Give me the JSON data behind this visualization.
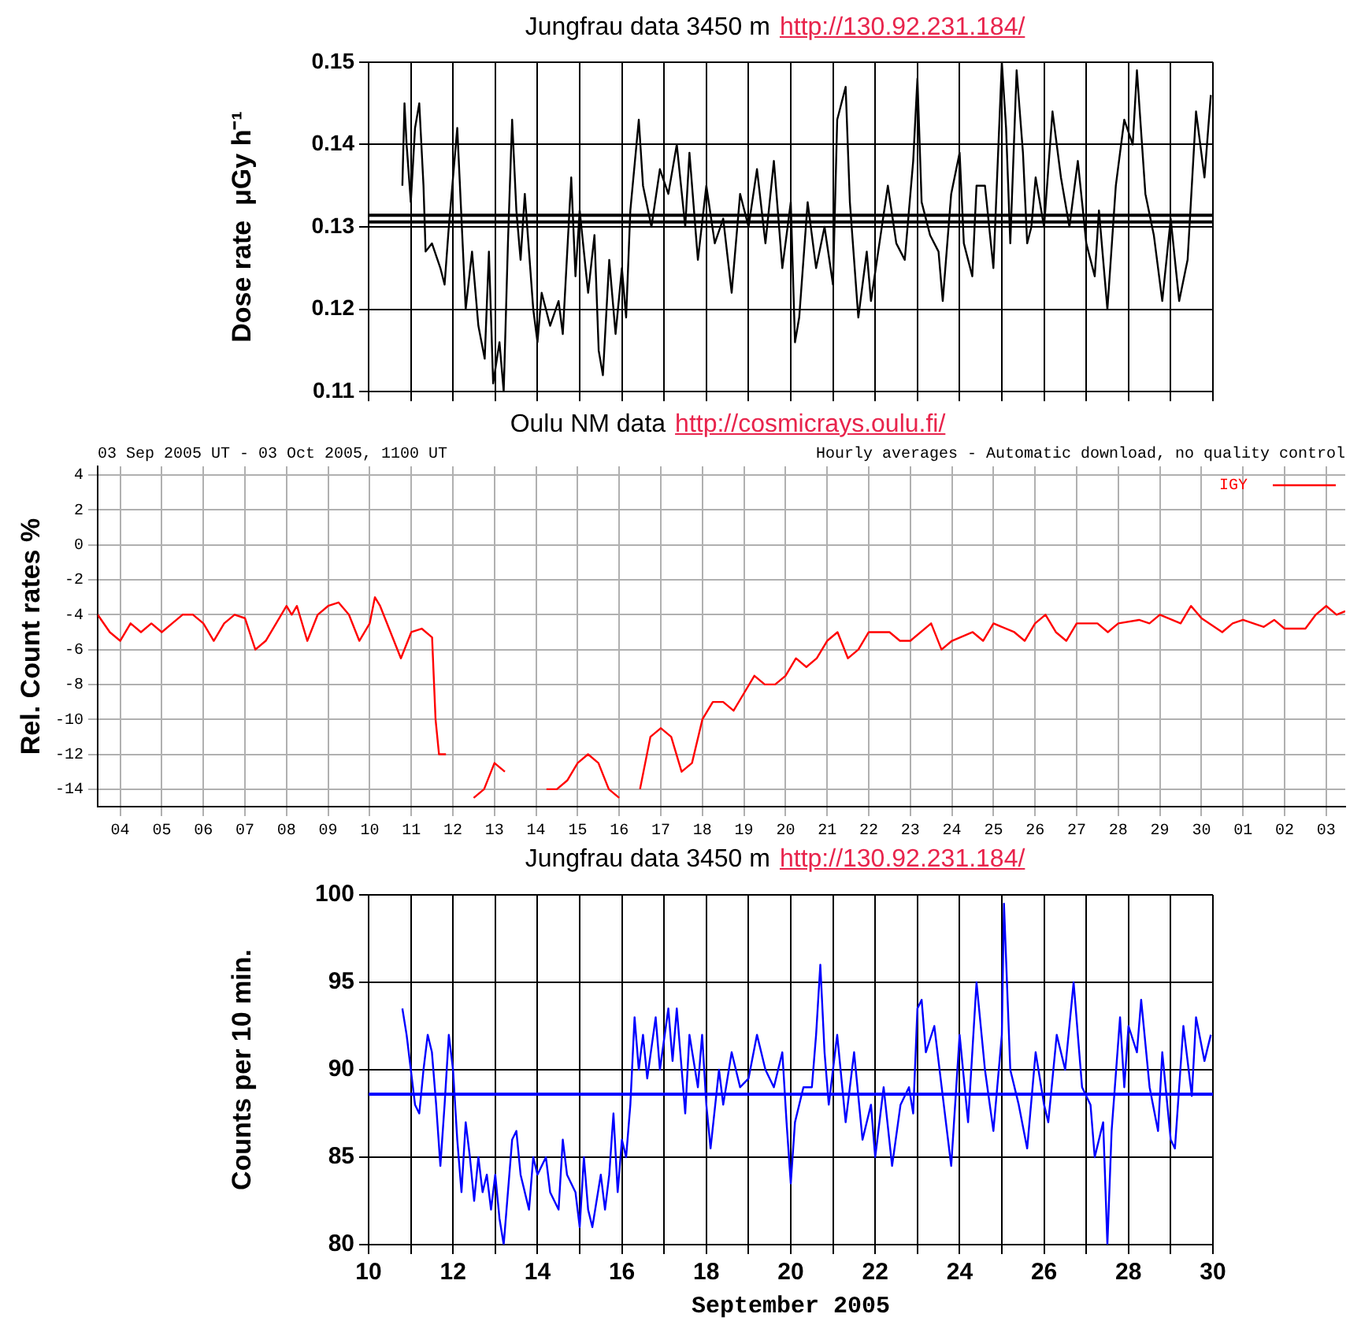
{
  "chart_data": [
    {
      "type": "line",
      "title": "Jungfrau data 3450 m",
      "subtitle": "http://130.92.231.184/",
      "ylabel": "Dose rate  μGy h⁻¹",
      "xlim": [
        10,
        30
      ],
      "xticks": [
        10,
        {
          "value": 11,
          "label": null
        },
        12,
        {
          "value": 13,
          "label": null
        },
        14,
        {
          "value": 15,
          "label": null
        },
        16,
        {
          "value": 17,
          "label": null
        },
        18,
        {
          "value": 19,
          "label": null
        },
        20,
        {
          "value": 21,
          "label": null
        },
        22,
        {
          "value": 23,
          "label": null
        },
        24,
        {
          "value": 25,
          "label": null
        },
        26,
        {
          "value": 27,
          "label": null
        },
        28,
        {
          "value": 29,
          "label": null
        },
        30
      ],
      "ylim": [
        0.11,
        0.15
      ],
      "yticks": [
        0.11,
        0.12,
        0.13,
        0.14,
        0.15
      ],
      "tick_labels": "y",
      "grid": true,
      "ref_lines": [
        {
          "axis": "y",
          "value": 0.1306,
          "color": "#000000"
        },
        {
          "axis": "y",
          "value": 0.1314,
          "color": "#000000"
        }
      ],
      "series": [
        {
          "color": "#000000",
          "x": [
            10.8,
            10.85,
            10.9,
            11.0,
            11.1,
            11.2,
            11.3,
            11.35,
            11.5,
            11.7,
            11.8,
            11.9,
            12.0,
            12.1,
            12.2,
            12.3,
            12.45,
            12.6,
            12.75,
            12.85,
            12.95,
            13.1,
            13.2,
            13.3,
            13.4,
            13.5,
            13.6,
            13.7,
            13.8,
            13.9,
            14.0,
            14.1,
            14.3,
            14.5,
            14.6,
            14.8,
            14.9,
            15.0,
            15.2,
            15.35,
            15.45,
            15.55,
            15.7,
            15.85,
            16.0,
            16.1,
            16.2,
            16.4,
            16.5,
            16.7,
            16.9,
            17.1,
            17.3,
            17.5,
            17.6,
            17.8,
            18.0,
            18.2,
            18.4,
            18.6,
            18.8,
            19.0,
            19.2,
            19.4,
            19.6,
            19.8,
            20.0,
            20.1,
            20.2,
            20.4,
            20.6,
            20.8,
            21.0,
            21.1,
            21.3,
            21.4,
            21.6,
            21.8,
            21.9,
            22.1,
            22.3,
            22.5,
            22.7,
            22.9,
            23.0,
            23.1,
            23.3,
            23.5,
            23.6,
            23.8,
            24.0,
            24.1,
            24.3,
            24.4,
            24.6,
            24.8,
            25.0,
            25.1,
            25.2,
            25.35,
            25.5,
            25.6,
            25.7,
            25.8,
            26.0,
            26.2,
            26.4,
            26.6,
            26.8,
            27.0,
            27.2,
            27.3,
            27.5,
            27.7,
            27.9,
            28.1,
            28.2,
            28.4,
            28.6,
            28.8,
            29.0,
            29.2,
            29.4,
            29.6,
            29.8,
            29.95
          ],
          "values": [
            0.135,
            0.145,
            0.14,
            0.133,
            0.142,
            0.145,
            0.135,
            0.127,
            0.128,
            0.125,
            0.123,
            0.13,
            0.136,
            0.142,
            0.131,
            0.12,
            0.127,
            0.118,
            0.114,
            0.127,
            0.111,
            0.116,
            0.11,
            0.128,
            0.143,
            0.132,
            0.126,
            0.134,
            0.127,
            0.12,
            0.116,
            0.122,
            0.118,
            0.121,
            0.117,
            0.136,
            0.124,
            0.132,
            0.122,
            0.129,
            0.115,
            0.112,
            0.126,
            0.117,
            0.125,
            0.119,
            0.132,
            0.143,
            0.135,
            0.13,
            0.137,
            0.134,
            0.14,
            0.13,
            0.139,
            0.126,
            0.135,
            0.128,
            0.131,
            0.122,
            0.134,
            0.13,
            0.137,
            0.128,
            0.138,
            0.125,
            0.133,
            0.116,
            0.119,
            0.133,
            0.125,
            0.13,
            0.123,
            0.143,
            0.147,
            0.133,
            0.119,
            0.127,
            0.121,
            0.128,
            0.135,
            0.128,
            0.126,
            0.138,
            0.148,
            0.133,
            0.129,
            0.127,
            0.121,
            0.134,
            0.139,
            0.128,
            0.124,
            0.135,
            0.135,
            0.125,
            0.15,
            0.142,
            0.128,
            0.149,
            0.139,
            0.128,
            0.13,
            0.136,
            0.13,
            0.144,
            0.136,
            0.13,
            0.138,
            0.128,
            0.124,
            0.132,
            0.12,
            0.135,
            0.143,
            0.14,
            0.149,
            0.134,
            0.129,
            0.121,
            0.131,
            0.121,
            0.126,
            0.144,
            0.136,
            0.146
          ]
        }
      ]
    },
    {
      "type": "line",
      "title": "Oulu NM data",
      "subtitle": "http://cosmicrays.oulu.fi/",
      "ylabel": "Rel. Count rates %",
      "annotations": [
        "03 Sep 2005 UT - 03 Oct 2005, 1100 UT",
        "Hourly averages - Automatic download, no quality control"
      ],
      "xlim": [
        "2005-09-03T11:00",
        "2005-10-03T11:00"
      ],
      "xticks": [
        {
          "value": "2005-09-04",
          "label": "04"
        },
        {
          "value": "2005-09-05",
          "label": "05"
        },
        {
          "value": "2005-09-06",
          "label": "06"
        },
        {
          "value": "2005-09-07",
          "label": "07"
        },
        {
          "value": "2005-09-08",
          "label": "08"
        },
        {
          "value": "2005-09-09",
          "label": "09"
        },
        {
          "value": "2005-09-10",
          "label": "10"
        },
        {
          "value": "2005-09-11",
          "label": "11"
        },
        {
          "value": "2005-09-12",
          "label": "12"
        },
        {
          "value": "2005-09-13",
          "label": "13"
        },
        {
          "value": "2005-09-14",
          "label": "14"
        },
        {
          "value": "2005-09-15",
          "label": "15"
        },
        {
          "value": "2005-09-16",
          "label": "16"
        },
        {
          "value": "2005-09-17",
          "label": "17"
        },
        {
          "value": "2005-09-18",
          "label": "18"
        },
        {
          "value": "2005-09-19",
          "label": "19"
        },
        {
          "value": "2005-09-20",
          "label": "20"
        },
        {
          "value": "2005-09-21",
          "label": "21"
        },
        {
          "value": "2005-09-22",
          "label": "22"
        },
        {
          "value": "2005-09-23",
          "label": "23"
        },
        {
          "value": "2005-09-24",
          "label": "24"
        },
        {
          "value": "2005-09-25",
          "label": "25"
        },
        {
          "value": "2005-09-26",
          "label": "26"
        },
        {
          "value": "2005-09-27",
          "label": "27"
        },
        {
          "value": "2005-09-28",
          "label": "28"
        },
        {
          "value": "2005-09-29",
          "label": "29"
        },
        {
          "value": "2005-09-30",
          "label": "30"
        },
        {
          "value": "2005-10-01",
          "label": "01"
        },
        {
          "value": "2005-10-02",
          "label": "02"
        },
        {
          "value": "2005-10-03",
          "label": "03"
        }
      ],
      "ylim": [
        -15,
        4.5
      ],
      "yticks": [
        -14,
        -12,
        -10,
        -8,
        -6,
        -4,
        -2,
        0,
        2,
        4
      ],
      "grid": true,
      "legend": "top right",
      "series": [
        {
          "name": "IGY",
          "color": "#ff0000",
          "x": [
            "2005-09-03T11:00",
            "2005-09-03T18:00",
            "2005-09-04T00:00",
            "2005-09-04T06:00",
            "2005-09-04T12:00",
            "2005-09-04T18:00",
            "2005-09-05T00:00",
            "2005-09-05T06:00",
            "2005-09-05T12:00",
            "2005-09-05T18:00",
            "2005-09-06T00:00",
            "2005-09-06T06:00",
            "2005-09-06T12:00",
            "2005-09-06T18:00",
            "2005-09-07T00:00",
            "2005-09-07T06:00",
            "2005-09-07T12:00",
            "2005-09-07T18:00",
            "2005-09-08T00:00",
            "2005-09-08T03:00",
            "2005-09-08T06:00",
            "2005-09-08T12:00",
            "2005-09-08T18:00",
            "2005-09-09T00:00",
            "2005-09-09T06:00",
            "2005-09-09T12:00",
            "2005-09-09T18:00",
            "2005-09-10T00:00",
            "2005-09-10T03:00",
            "2005-09-10T06:00",
            "2005-09-10T12:00",
            "2005-09-10T18:00",
            "2005-09-11T00:00",
            "2005-09-11T06:00",
            "2005-09-11T12:00",
            "2005-09-11T14:00",
            "2005-09-11T16:00",
            "2005-09-11T20:00",
            "2005-09-11T22:00",
            "2005-09-12T04:00",
            "2005-09-12T10:00",
            "2005-09-12T12:00",
            "2005-09-12T18:00",
            "2005-09-13T00:00",
            "2005-09-13T06:00",
            "2005-09-13T09:00",
            "2005-09-13T15:00",
            "2005-09-13T22:00",
            "2005-09-14T06:00",
            "2005-09-14T12:00",
            "2005-09-14T18:00",
            "2005-09-15T00:00",
            "2005-09-15T06:00",
            "2005-09-15T12:00",
            "2005-09-15T18:00",
            "2005-09-16T00:00",
            "2005-09-16T06:00",
            "2005-09-16T12:00",
            "2005-09-16T18:00",
            "2005-09-17T00:00",
            "2005-09-17T06:00",
            "2005-09-17T12:00",
            "2005-09-17T18:00",
            "2005-09-18T00:00",
            "2005-09-18T06:00",
            "2005-09-18T12:00",
            "2005-09-18T18:00",
            "2005-09-19T00:00",
            "2005-09-19T06:00",
            "2005-09-19T12:00",
            "2005-09-19T18:00",
            "2005-09-20T00:00",
            "2005-09-20T06:00",
            "2005-09-20T12:00",
            "2005-09-20T18:00",
            "2005-09-21T00:00",
            "2005-09-21T06:00",
            "2005-09-21T12:00",
            "2005-09-21T18:00",
            "2005-09-22T00:00",
            "2005-09-22T12:00",
            "2005-09-22T18:00",
            "2005-09-23T00:00",
            "2005-09-23T12:00",
            "2005-09-23T18:00",
            "2005-09-24T00:00",
            "2005-09-24T12:00",
            "2005-09-24T18:00",
            "2005-09-25T00:00",
            "2005-09-25T12:00",
            "2005-09-25T18:00",
            "2005-09-26T00:00",
            "2005-09-26T06:00",
            "2005-09-26T12:00",
            "2005-09-26T18:00",
            "2005-09-27T00:00",
            "2005-09-27T12:00",
            "2005-09-27T18:00",
            "2005-09-28T00:00",
            "2005-09-28T12:00",
            "2005-09-28T18:00",
            "2005-09-29T00:00",
            "2005-09-29T12:00",
            "2005-09-29T18:00",
            "2005-09-30T00:00",
            "2005-09-30T12:00",
            "2005-09-30T18:00",
            "2005-10-01T00:00",
            "2005-10-01T12:00",
            "2005-10-01T18:00",
            "2005-10-02T00:00",
            "2005-10-02T12:00",
            "2005-10-02T18:00",
            "2005-10-03T00:00",
            "2005-10-03T06:00",
            "2005-10-03T11:00"
          ],
          "values": [
            -4,
            -5,
            -5.5,
            -4.5,
            -5,
            -4.5,
            -5,
            -4.5,
            -4,
            -4,
            -4.5,
            -5.5,
            -4.5,
            -4,
            -4.2,
            -6,
            -5.5,
            -4.5,
            -3.5,
            -4,
            -3.5,
            -5.5,
            -4,
            -3.5,
            -3.3,
            -4,
            -5.5,
            -4.5,
            -3,
            -3.5,
            -5,
            -6.5,
            -5,
            -4.8,
            -5.3,
            -10,
            -12,
            -12,
            null,
            null,
            null,
            -14.5,
            -14,
            -12.5,
            -13,
            null,
            null,
            null,
            -14,
            -14,
            -13.5,
            -12.5,
            -12,
            -12.5,
            -14,
            -14.5,
            null,
            -14,
            -11,
            -10.5,
            -11,
            -13,
            -12.5,
            -10,
            -9,
            -9,
            -9.5,
            -8.5,
            -7.5,
            -8,
            -8,
            -7.5,
            -6.5,
            -7,
            -6.5,
            -5.5,
            -5,
            -6.5,
            -6,
            -5,
            -5,
            -5.5,
            -5.5,
            -4.5,
            -6,
            -5.5,
            -5,
            -5.5,
            -4.5,
            -5,
            -5.5,
            -4.5,
            -4,
            -5,
            -5.5,
            -4.5,
            -4.5,
            -5,
            -4.5,
            -4.3,
            -4.5,
            -4,
            -4.5,
            -3.5,
            -4.2,
            -5,
            -4.5,
            -4.3,
            -4.7,
            -4.3,
            -4.8,
            -4.8,
            -4,
            -3.5,
            -4,
            -3.8
          ]
        }
      ]
    },
    {
      "type": "line",
      "title": "Jungfrau data 3450 m",
      "subtitle": "http://130.92.231.184/",
      "ylabel": "Counts per 10 min.",
      "xlabel": "September 2005",
      "xlim": [
        10,
        30
      ],
      "xticks": [
        10,
        {
          "value": 11,
          "label": null
        },
        12,
        {
          "value": 13,
          "label": null
        },
        14,
        {
          "value": 15,
          "label": null
        },
        16,
        {
          "value": 17,
          "label": null
        },
        18,
        {
          "value": 19,
          "label": null
        },
        20,
        {
          "value": 21,
          "label": null
        },
        22,
        {
          "value": 23,
          "label": null
        },
        24,
        {
          "value": 25,
          "label": null
        },
        26,
        {
          "value": 27,
          "label": null
        },
        28,
        {
          "value": 29,
          "label": null
        },
        30
      ],
      "ylim": [
        80,
        100
      ],
      "yticks": [
        80,
        85,
        90,
        95,
        100
      ],
      "grid": true,
      "ref_lines": [
        {
          "axis": "y",
          "value": 88.6,
          "color": "#0000ff"
        }
      ],
      "series": [
        {
          "color": "#0000ff",
          "x": [
            10.8,
            10.9,
            11.0,
            11.1,
            11.2,
            11.3,
            11.4,
            11.5,
            11.6,
            11.7,
            11.8,
            11.9,
            12.0,
            12.1,
            12.2,
            12.3,
            12.4,
            12.5,
            12.6,
            12.7,
            12.8,
            12.9,
            13.0,
            13.1,
            13.2,
            13.3,
            13.4,
            13.5,
            13.6,
            13.7,
            13.8,
            13.9,
            14.0,
            14.2,
            14.3,
            14.5,
            14.6,
            14.7,
            14.9,
            15.0,
            15.1,
            15.2,
            15.3,
            15.5,
            15.6,
            15.7,
            15.8,
            15.9,
            16.0,
            16.1,
            16.2,
            16.3,
            16.4,
            16.5,
            16.6,
            16.8,
            16.9,
            17.1,
            17.2,
            17.3,
            17.5,
            17.6,
            17.8,
            17.9,
            18.0,
            18.1,
            18.3,
            18.4,
            18.6,
            18.8,
            19.0,
            19.2,
            19.4,
            19.6,
            19.8,
            19.9,
            20.0,
            20.1,
            20.3,
            20.5,
            20.6,
            20.7,
            20.8,
            20.9,
            21.1,
            21.3,
            21.5,
            21.7,
            21.9,
            22.0,
            22.2,
            22.4,
            22.6,
            22.8,
            22.9,
            23.0,
            23.1,
            23.2,
            23.4,
            23.6,
            23.8,
            24.0,
            24.2,
            24.4,
            24.6,
            24.8,
            25.0,
            25.05,
            25.2,
            25.4,
            25.6,
            25.8,
            26.0,
            26.1,
            26.3,
            26.5,
            26.7,
            26.9,
            27.1,
            27.2,
            27.4,
            27.5,
            27.6,
            27.8,
            27.9,
            28.0,
            28.2,
            28.3,
            28.5,
            28.7,
            28.8,
            29.0,
            29.1,
            29.3,
            29.5,
            29.6,
            29.8,
            29.95
          ],
          "values": [
            93.5,
            92,
            90,
            88,
            87.5,
            90,
            92,
            91,
            88,
            84.5,
            88,
            92,
            90,
            86,
            83,
            87,
            85,
            82.5,
            85,
            83,
            84,
            82,
            84,
            81.5,
            80,
            83,
            86,
            86.5,
            84,
            83,
            82,
            85,
            84,
            85,
            83,
            82,
            86,
            84,
            83,
            81,
            85,
            82,
            81,
            84,
            82,
            84,
            87.5,
            83,
            86,
            85,
            88,
            93,
            90,
            92,
            89.5,
            93,
            90,
            93.5,
            90.5,
            93.5,
            87.5,
            92,
            89,
            92,
            88,
            85.5,
            90,
            88,
            91,
            89,
            89.5,
            92,
            90,
            89,
            91,
            87,
            83.5,
            87,
            89,
            89,
            92,
            96,
            91,
            88,
            92,
            87,
            91,
            86,
            88,
            85,
            89,
            84.5,
            88,
            89,
            87.5,
            93.5,
            94,
            91,
            92.5,
            88.5,
            84.5,
            92,
            87,
            95,
            90,
            86.5,
            92,
            99.5,
            90,
            88,
            85.5,
            91,
            88,
            87,
            92,
            90,
            95,
            89,
            88,
            85,
            87,
            80,
            86.5,
            93,
            89,
            92.5,
            91,
            94,
            89,
            86.5,
            91,
            86,
            85.5,
            92.5,
            88.5,
            93,
            90.5,
            92
          ]
        }
      ]
    }
  ]
}
